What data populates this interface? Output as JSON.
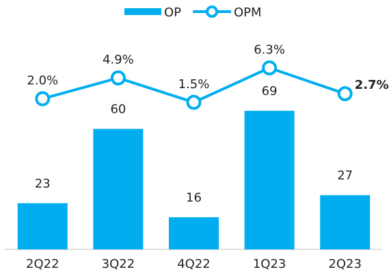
{
  "chart_data": {
    "type": "bar-line",
    "categories": [
      "2Q22",
      "3Q22",
      "4Q22",
      "1Q23",
      "2Q23"
    ],
    "series": [
      {
        "name": "OP",
        "type": "bar",
        "color": "#00aeef",
        "values": [
          23,
          60,
          16,
          69,
          27
        ]
      },
      {
        "name": "OPM",
        "type": "line",
        "axis": "y2",
        "color": "#00aeef",
        "values": [
          2.0,
          4.9,
          1.5,
          6.3,
          2.7
        ],
        "value_labels": [
          "2.0%",
          "4.9%",
          "1.5%",
          "6.3%",
          "2.7%"
        ]
      }
    ],
    "ylim": [
      0,
      100
    ],
    "y2lim": [
      -19,
      9
    ],
    "legend": "top"
  }
}
